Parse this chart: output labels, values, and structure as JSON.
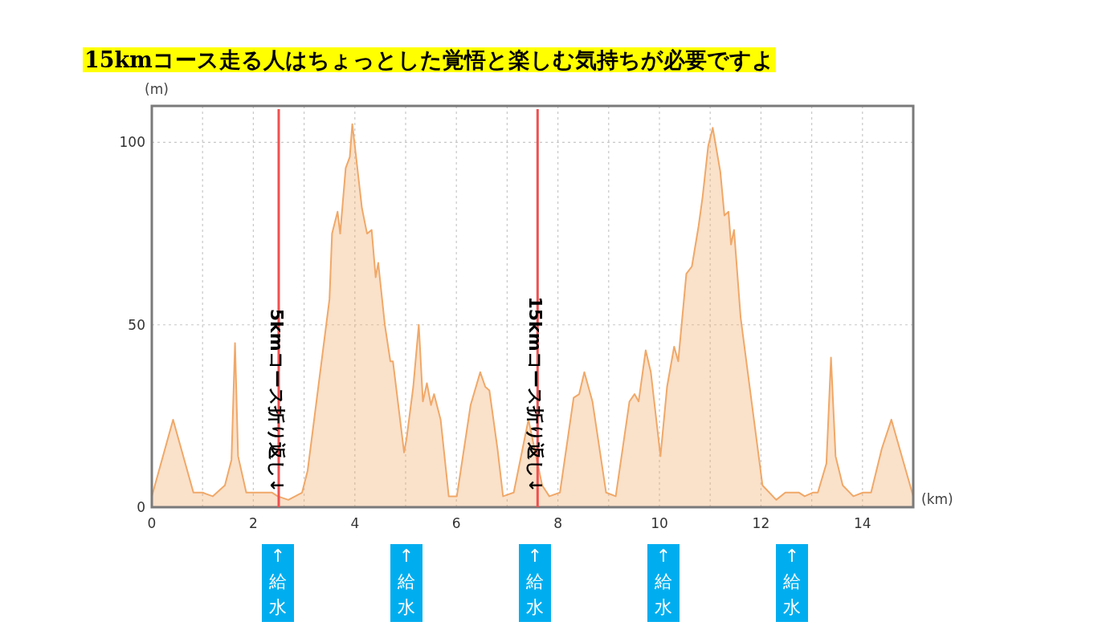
{
  "chart_data": {
    "type": "area",
    "title": "15kmコース走る人はちょっとした覚悟と楽しむ気持ちが必要ですよ",
    "xlabel": "(km)",
    "ylabel": "(m)",
    "color": "#f0a868",
    "x": [
      0,
      0.42,
      0.82,
      1.0,
      1.2,
      1.44,
      1.57,
      1.64,
      1.7,
      1.86,
      2.1,
      2.37,
      2.48,
      2.69,
      2.96,
      3.07,
      3.5,
      3.55,
      3.66,
      3.71,
      3.82,
      3.9,
      3.95,
      4.0,
      4.14,
      4.24,
      4.33,
      4.41,
      4.46,
      4.59,
      4.7,
      4.75,
      4.97,
      5.02,
      5.15,
      5.26,
      5.34,
      5.42,
      5.5,
      5.56,
      5.69,
      5.85,
      6.01,
      6.28,
      6.47,
      6.57,
      6.65,
      6.81,
      6.92,
      7.13,
      7.42,
      7.69,
      7.83,
      8.04,
      8.31,
      8.42,
      8.52,
      8.68,
      8.95,
      9.14,
      9.41,
      9.51,
      9.59,
      9.73,
      9.83,
      10.02,
      10.15,
      10.29,
      10.37,
      10.53,
      10.64,
      10.77,
      10.85,
      10.96,
      11.05,
      11.2,
      11.28,
      11.36,
      11.41,
      11.47,
      11.6,
      12.03,
      12.3,
      12.48,
      12.75,
      12.86,
      13.02,
      13.12,
      13.29,
      13.38,
      13.47,
      13.61,
      13.82,
      14.01,
      14.17,
      14.38,
      14.57,
      15.0
    ],
    "values": [
      3,
      24,
      4,
      4,
      3,
      6,
      13,
      45,
      14,
      4,
      4,
      4,
      3,
      2,
      4,
      10,
      57,
      75,
      81,
      75,
      93,
      96,
      105,
      99,
      82,
      75,
      76,
      63,
      67,
      50,
      40,
      40,
      15,
      19,
      33,
      50,
      29,
      34,
      28,
      31,
      24,
      3,
      3,
      28,
      37,
      33,
      32,
      16,
      3,
      4,
      24,
      6,
      3,
      4,
      30,
      31,
      37,
      29,
      4,
      3,
      29,
      31,
      29,
      43,
      37,
      14,
      33,
      44,
      40,
      64,
      66,
      77,
      85,
      99,
      104,
      92,
      80,
      81,
      72,
      76,
      52,
      6,
      2,
      4,
      4,
      3,
      4,
      4,
      12,
      41,
      14,
      6,
      3,
      4,
      4,
      16,
      24,
      3
    ],
    "xlim": [
      0,
      15
    ],
    "xticks": [
      0,
      {
        "value": 1,
        "label": null
      },
      2,
      {
        "value": 3,
        "label": null
      },
      4,
      {
        "value": 5,
        "label": null
      },
      6,
      {
        "value": 7,
        "label": null
      },
      8,
      {
        "value": 9,
        "label": null
      },
      10,
      {
        "value": 11,
        "label": null
      },
      12,
      {
        "value": 13,
        "label": null
      },
      14
    ],
    "ylim": [
      0,
      110
    ],
    "yticks": [
      0,
      50,
      100
    ],
    "grid": true,
    "ref_lines": [
      {
        "axis": "x",
        "value": 2.5,
        "label": "5kmコース折り返し↓",
        "color": "#f05050"
      },
      {
        "axis": "x",
        "value": 7.6,
        "label": "15kmコース折り返し↓",
        "color": "#f05050"
      }
    ],
    "annotations": [
      "↑給水",
      "↑給水",
      "↑給水",
      "↑給水",
      "↑給水"
    ]
  }
}
